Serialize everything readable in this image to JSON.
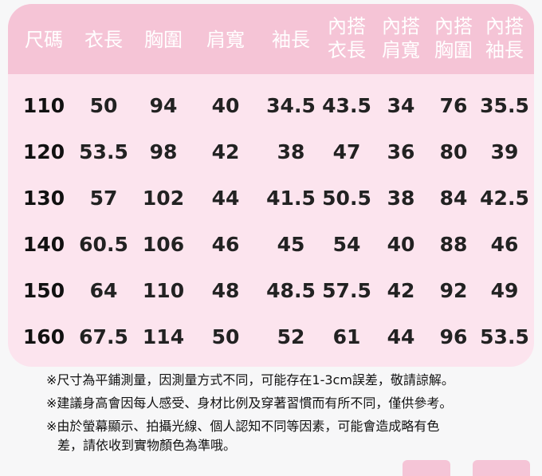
{
  "table": {
    "headers": [
      {
        "line1": "尺碼",
        "line2": ""
      },
      {
        "line1": "衣長",
        "line2": ""
      },
      {
        "line1": "胸圍",
        "line2": ""
      },
      {
        "line1": "肩寬",
        "line2": ""
      },
      {
        "line1": "袖長",
        "line2": ""
      },
      {
        "line1": "內搭",
        "line2": "衣長"
      },
      {
        "line1": "內搭",
        "line2": "肩寬"
      },
      {
        "line1": "內搭",
        "line2": "胸圍"
      },
      {
        "line1": "內搭",
        "line2": "袖長"
      }
    ],
    "rows": [
      [
        "110",
        "50",
        "94",
        "40",
        "34.5",
        "43.5",
        "34",
        "76",
        "35.5"
      ],
      [
        "120",
        "53.5",
        "98",
        "42",
        "38",
        "47",
        "36",
        "80",
        "39"
      ],
      [
        "130",
        "57",
        "102",
        "44",
        "41.5",
        "50.5",
        "38",
        "84",
        "42.5"
      ],
      [
        "140",
        "60.5",
        "106",
        "46",
        "45",
        "54",
        "40",
        "88",
        "46"
      ],
      [
        "150",
        "64",
        "110",
        "48",
        "48.5",
        "57.5",
        "42",
        "92",
        "49"
      ],
      [
        "160",
        "67.5",
        "114",
        "50",
        "52",
        "61",
        "44",
        "96",
        "53.5"
      ]
    ]
  },
  "notes": [
    "※尺寸為平鋪測量，因測量方式不同，可能存在1-3cm誤差，敬請諒解。",
    "※建議身高會因每人感受、身材比例及穿著習慣而有所不同，僅供參考。",
    "※由於螢幕顯示、拍攝光線、個人認知不同等因素，可能會造成略有色",
    "差，請依收到實物顏色為準哦。"
  ],
  "colors": {
    "header": "#f5c4d6",
    "body": "#fce4ee",
    "text": "#222222"
  }
}
